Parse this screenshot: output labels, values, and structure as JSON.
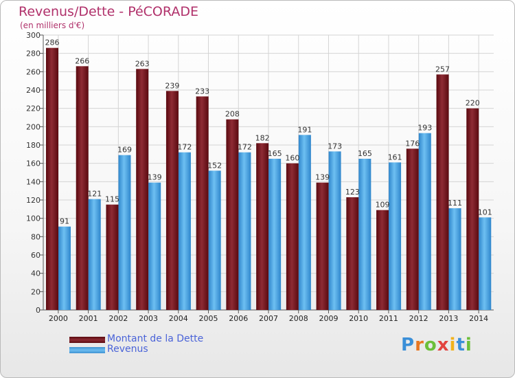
{
  "chart_data": {
    "type": "bar",
    "title": "Revenus/Dette - PéCORADE",
    "subtitle": "(en milliers d'€)",
    "categories": [
      "2000",
      "2001",
      "2002",
      "2003",
      "2004",
      "2005",
      "2006",
      "2007",
      "2008",
      "2009",
      "2010",
      "2011",
      "2012",
      "2013",
      "2014"
    ],
    "series": [
      {
        "name": "Montant de la Dette",
        "color": "#7a1a22",
        "values": [
          286,
          266,
          115,
          263,
          239,
          233,
          208,
          182,
          160,
          139,
          123,
          109,
          176,
          257,
          220
        ]
      },
      {
        "name": "Revenus",
        "color": "#4da6e6",
        "values": [
          91,
          121,
          169,
          139,
          172,
          152,
          172,
          165,
          191,
          173,
          165,
          161,
          193,
          111,
          101
        ]
      }
    ],
    "y_ticks": [
      "0",
      "20",
      "40",
      "60",
      "80",
      "100",
      "120",
      "140",
      "160",
      "180",
      "200",
      "220",
      "240",
      "260",
      "280",
      "300"
    ],
    "ylim": [
      0,
      300
    ],
    "grid": true,
    "legend_position": "bottom-left"
  },
  "logo": {
    "letters": [
      "P",
      "r",
      "o",
      "x",
      "i",
      "t",
      "i"
    ],
    "colors": [
      "#3a8fd8",
      "#e87722",
      "#6cbf3a",
      "#e2433f",
      "#f2b21c",
      "#3a8fd8",
      "#6cbf3a"
    ]
  }
}
